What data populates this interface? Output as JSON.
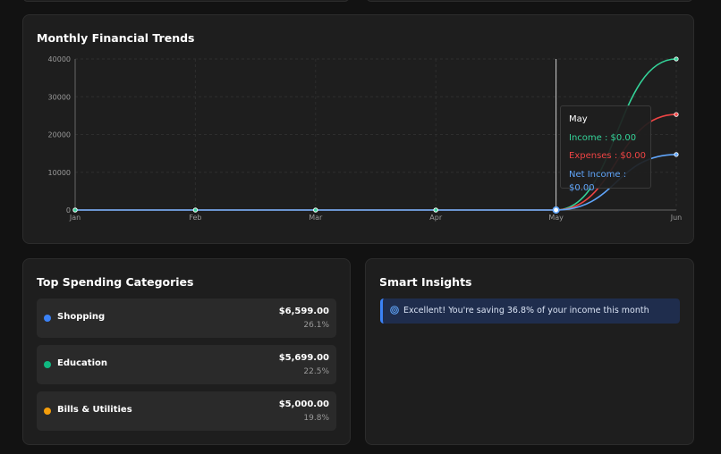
{
  "trends": {
    "title": "Monthly Financial Trends",
    "tooltip": {
      "month": "May",
      "income": "Income : $0.00",
      "expenses": "Expenses : $0.00",
      "net": "Net Income : $0.00"
    }
  },
  "chart_data": {
    "type": "line",
    "x": [
      "Jan",
      "Feb",
      "Mar",
      "Apr",
      "May",
      "Jun"
    ],
    "ylim": [
      0,
      40000
    ],
    "yticks": [
      "0",
      "10000",
      "20000",
      "30000",
      "40000"
    ],
    "grid": true,
    "series": [
      {
        "name": "Income",
        "color": "#34d399",
        "values": [
          0,
          0,
          0,
          0,
          0,
          40000
        ]
      },
      {
        "name": "Expenses",
        "color": "#ef4444",
        "values": [
          0,
          0,
          0,
          0,
          0,
          25300
        ]
      },
      {
        "name": "Net Income",
        "color": "#60a5fa",
        "values": [
          0,
          0,
          0,
          0,
          0,
          14700
        ]
      }
    ],
    "active_point": "May"
  },
  "spending": {
    "title": "Top Spending Categories",
    "items": [
      {
        "name": "Shopping",
        "amount": "$6,599.00",
        "percent": "26.1%",
        "color": "#3b82f6"
      },
      {
        "name": "Education",
        "amount": "$5,699.00",
        "percent": "22.5%",
        "color": "#10b981"
      },
      {
        "name": "Bills & Utilities",
        "amount": "$5,000.00",
        "percent": "19.8%",
        "color": "#f59e0b"
      }
    ]
  },
  "insights": {
    "title": "Smart Insights",
    "icon": "target-icon",
    "message": "Excellent! You're saving 36.8% of your income this month"
  }
}
